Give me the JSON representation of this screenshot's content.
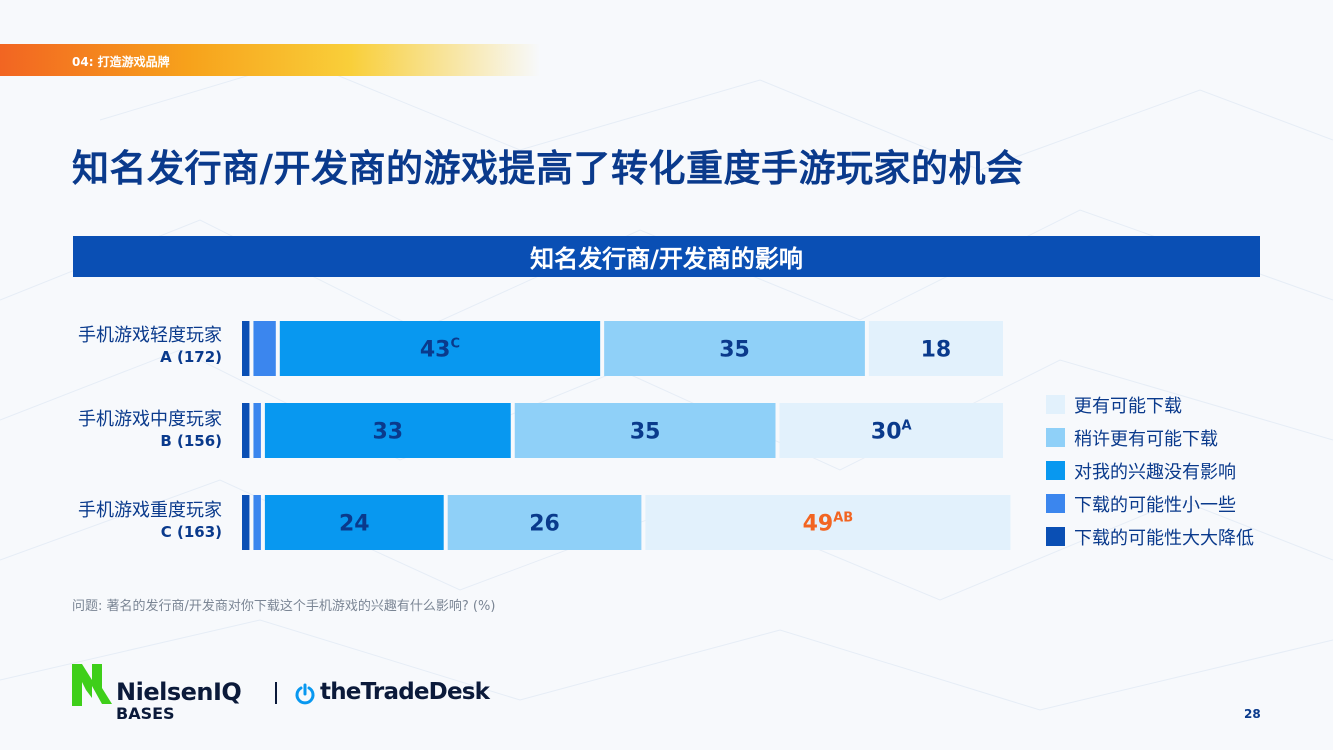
{
  "section": {
    "tag": "04: 打造游戏品牌"
  },
  "page": {
    "title": "知名发行商/开发商的游戏提高了转化重度手游玩家的机会",
    "number": "28"
  },
  "footnote": "问题: 著名的发行商/开发商对你下载这个手机游戏的兴趣有什么影响? (%)",
  "logos": {
    "nielseniq": "NielsenIQ",
    "nielseniq_sub": "BASES",
    "tradedesk": "theTradeDesk"
  },
  "colors": {
    "much_more_likely": "#e2f1fc",
    "somewhat_more_likely": "#8fd0f8",
    "no_impact": "#0898f0",
    "somewhat_less_likely": "#3b86ee",
    "much_less_likely": "#0a4fb4",
    "header_bg": "#0a4fb4",
    "label_dark": "#0a3a8c",
    "sig_highlight": "#f26522"
  },
  "chart_data": {
    "type": "bar",
    "orientation": "horizontal",
    "stacked": true,
    "title": "知名发行商/开发商的影响",
    "categories": [
      {
        "name": "手机游戏轻度玩家",
        "n": "A  (172)"
      },
      {
        "name": "手机游戏中度玩家",
        "n": "B  (156)"
      },
      {
        "name": "手机游戏重度玩家",
        "n": "C (163)"
      }
    ],
    "series": [
      {
        "name": "下载的可能性大大降低",
        "color": "#0a4fb4",
        "values": [
          1,
          1,
          1
        ],
        "labels": [
          "",
          "",
          ""
        ],
        "sig": [
          "",
          "",
          ""
        ]
      },
      {
        "name": "下载的可能性小一些",
        "color": "#3b86ee",
        "values": [
          3,
          1,
          1
        ],
        "labels": [
          "",
          "",
          ""
        ],
        "sig": [
          "",
          "",
          ""
        ]
      },
      {
        "name": "对我的兴趣没有影响",
        "color": "#0898f0",
        "values": [
          43,
          33,
          24
        ],
        "labels": [
          "43",
          "33",
          "24"
        ],
        "sig": [
          "C",
          "",
          ""
        ]
      },
      {
        "name": "稍许更有可能下载",
        "color": "#8fd0f8",
        "values": [
          35,
          35,
          26
        ],
        "labels": [
          "35",
          "35",
          "26"
        ],
        "sig": [
          "",
          "",
          ""
        ]
      },
      {
        "name": "更有可能下载",
        "color": "#e2f1fc",
        "values": [
          18,
          30,
          49
        ],
        "labels": [
          "18",
          "30",
          "49"
        ],
        "sig": [
          "",
          "A",
          "AB"
        ]
      }
    ],
    "highlight": {
      "series": 4,
      "category": 2,
      "color": "#f26522"
    },
    "legend_position": "right",
    "legend_order": [
      "更有可能下载",
      "稍许更有可能下载",
      "对我的兴趣没有影响",
      "下载的可能性小一些",
      "下载的可能性大大降低"
    ],
    "unit": "%",
    "grid": false
  }
}
